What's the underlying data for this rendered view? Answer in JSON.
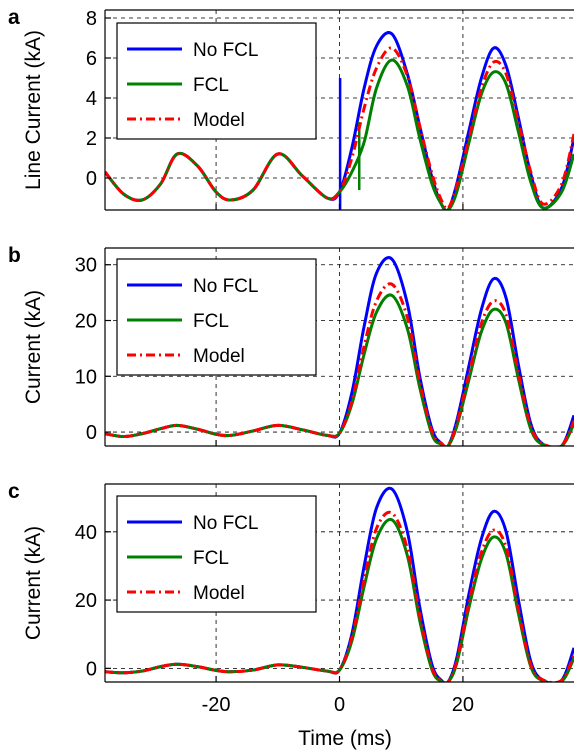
{
  "colors": {
    "no_fcl": "#0000ff",
    "fcl": "#008000",
    "model": "#ff0000",
    "grid": "#000000",
    "axis": "#000000"
  },
  "xlabel": "Time (ms)",
  "chart_data": [
    {
      "panel_label": "a",
      "type": "line",
      "ylabel": "Line Current (kA)",
      "xlim": [
        -38,
        38
      ],
      "ylim": [
        -1.6,
        8.4
      ],
      "yticks": [
        0,
        2,
        4,
        6,
        8
      ],
      "grid": true,
      "legend_position": "upper-left",
      "x": [
        -38,
        -35,
        -32,
        -29,
        -26.3,
        -23,
        -20,
        -17.6,
        -14,
        -10,
        -6,
        -2,
        0,
        2,
        4,
        6,
        8.5,
        11,
        13,
        15,
        16.5,
        17.6,
        19,
        21,
        23,
        25,
        27,
        29,
        31,
        33,
        36,
        38
      ],
      "series": [
        {
          "name": "No FCL",
          "style": "solid",
          "y": [
            0.3,
            -0.8,
            -1.1,
            -0.3,
            1.2,
            0.6,
            -0.7,
            -1.1,
            -0.6,
            1.2,
            0.1,
            -1.0,
            -0.7,
            1.5,
            4.5,
            6.6,
            7.2,
            5.2,
            2.6,
            0.0,
            -1.3,
            -1.6,
            -0.3,
            2.4,
            5.0,
            6.5,
            5.6,
            3.0,
            0.2,
            -1.5,
            -0.5,
            2.0
          ],
          "spikes": [
            {
              "x": 0.1,
              "y_min": -1.6,
              "y_max": 5.0
            }
          ]
        },
        {
          "name": "FCL",
          "style": "solid",
          "y": [
            0.3,
            -0.8,
            -1.1,
            -0.3,
            1.2,
            0.6,
            -0.7,
            -1.1,
            -0.6,
            1.2,
            0.1,
            -1.0,
            -0.7,
            0.3,
            1.8,
            4.5,
            5.9,
            4.6,
            2.0,
            -0.3,
            -1.3,
            -1.6,
            -0.7,
            1.8,
            4.2,
            5.3,
            4.7,
            2.3,
            -0.2,
            -1.5,
            -0.7,
            1.2
          ],
          "spikes": [
            {
              "x": 3.2,
              "y_min": -0.6,
              "y_max": 2.8
            }
          ]
        },
        {
          "name": "Model",
          "style": "dash-dot",
          "y": [
            0.3,
            -0.8,
            -1.1,
            -0.3,
            1.2,
            0.6,
            -0.7,
            -1.1,
            -0.6,
            1.2,
            0.1,
            -1.0,
            -0.7,
            1.0,
            3.5,
            5.5,
            6.5,
            5.1,
            2.6,
            0.2,
            -1.1,
            -1.5,
            -0.4,
            2.0,
            4.5,
            5.8,
            5.2,
            2.8,
            0.3,
            -1.3,
            -0.3,
            2.2
          ]
        }
      ]
    },
    {
      "panel_label": "b",
      "type": "line",
      "ylabel": "Current (kA)",
      "xlim": [
        -38,
        38
      ],
      "ylim": [
        -2.5,
        33
      ],
      "yticks": [
        0,
        10,
        20,
        30
      ],
      "grid": true,
      "legend_position": "upper-left",
      "x": [
        -38,
        -35,
        -32,
        -29,
        -26.3,
        -23,
        -20,
        -17.6,
        -14,
        -10,
        -6,
        -2,
        0,
        2,
        4,
        6,
        8.5,
        11,
        13,
        15,
        16.5,
        17.6,
        19,
        21,
        23,
        25,
        27,
        29,
        31,
        33,
        36,
        38
      ],
      "series": [
        {
          "name": "No FCL",
          "style": "solid",
          "y": [
            -0.3,
            -0.8,
            -0.3,
            0.6,
            1.2,
            0.5,
            -0.4,
            -0.6,
            0.2,
            1.2,
            0.4,
            -0.6,
            -0.2,
            7.0,
            19.0,
            28.5,
            31.0,
            23.0,
            10.0,
            0.5,
            -2.0,
            -2.5,
            2.0,
            12.0,
            22.0,
            27.5,
            24.0,
            12.0,
            1.5,
            -2.2,
            -2.5,
            3.0
          ]
        },
        {
          "name": "FCL",
          "style": "solid",
          "y": [
            -0.3,
            -0.8,
            -0.3,
            0.6,
            1.2,
            0.5,
            -0.4,
            -0.6,
            0.2,
            1.2,
            0.4,
            -0.6,
            -0.2,
            5.0,
            14.0,
            21.5,
            24.5,
            18.5,
            8.0,
            -0.5,
            -2.2,
            -2.5,
            1.0,
            9.5,
            18.0,
            22.0,
            19.5,
            9.5,
            0.5,
            -2.3,
            -2.5,
            1.5
          ]
        },
        {
          "name": "Model",
          "style": "dash-dot",
          "y": [
            -0.3,
            -0.8,
            -0.3,
            0.6,
            1.2,
            0.5,
            -0.4,
            -0.6,
            0.2,
            1.2,
            0.4,
            -0.6,
            -0.2,
            5.5,
            15.5,
            23.5,
            26.5,
            20.5,
            9.0,
            0.0,
            -2.0,
            -2.4,
            1.5,
            10.5,
            19.5,
            23.5,
            21.0,
            10.5,
            1.0,
            -2.1,
            -2.4,
            2.0
          ]
        }
      ]
    },
    {
      "panel_label": "c",
      "type": "line",
      "ylabel": "Current (kA)",
      "xlim": [
        -38,
        38
      ],
      "ylim": [
        -4,
        54
      ],
      "yticks": [
        0,
        20,
        40
      ],
      "grid": true,
      "legend_position": "upper-left",
      "x": [
        -38,
        -35,
        -32,
        -29,
        -26.3,
        -23,
        -20,
        -17.6,
        -14,
        -10,
        -6,
        -2,
        0,
        2,
        4,
        6,
        8.5,
        11,
        13,
        15,
        16.5,
        17.6,
        19,
        21,
        23,
        25,
        27,
        29,
        31,
        33,
        36,
        38
      ],
      "series": [
        {
          "name": "No FCL",
          "style": "solid",
          "y": [
            -1.0,
            -1.3,
            -0.8,
            0.5,
            1.2,
            0.5,
            -0.6,
            -1.0,
            -0.5,
            1.0,
            0.3,
            -0.8,
            -0.5,
            10.0,
            30.0,
            47.0,
            52.5,
            40.0,
            18.0,
            1.0,
            -3.5,
            -4.0,
            3.0,
            22.0,
            38.0,
            46.0,
            40.0,
            20.0,
            2.0,
            -3.5,
            -3.5,
            6.0
          ]
        },
        {
          "name": "FCL",
          "style": "solid",
          "y": [
            -1.0,
            -1.3,
            -0.8,
            0.5,
            1.2,
            0.5,
            -0.6,
            -1.0,
            -0.5,
            1.0,
            0.3,
            -0.8,
            -0.5,
            8.0,
            24.0,
            38.0,
            43.5,
            33.0,
            14.0,
            -0.5,
            -3.8,
            -4.0,
            1.5,
            18.0,
            32.0,
            38.5,
            33.5,
            16.0,
            0.5,
            -3.7,
            -3.8,
            3.0
          ]
        },
        {
          "name": "Model",
          "style": "dash-dot",
          "y": [
            -1.0,
            -1.3,
            -0.8,
            0.5,
            1.2,
            0.5,
            -0.6,
            -1.0,
            -0.5,
            1.0,
            0.3,
            -0.8,
            -0.5,
            9.0,
            26.0,
            41.0,
            45.5,
            35.0,
            15.5,
            0.0,
            -3.5,
            -3.9,
            2.0,
            19.5,
            34.0,
            40.5,
            35.5,
            17.0,
            1.0,
            -3.4,
            -3.5,
            4.0
          ]
        }
      ],
      "xticks": [
        -20,
        0,
        20
      ]
    }
  ]
}
